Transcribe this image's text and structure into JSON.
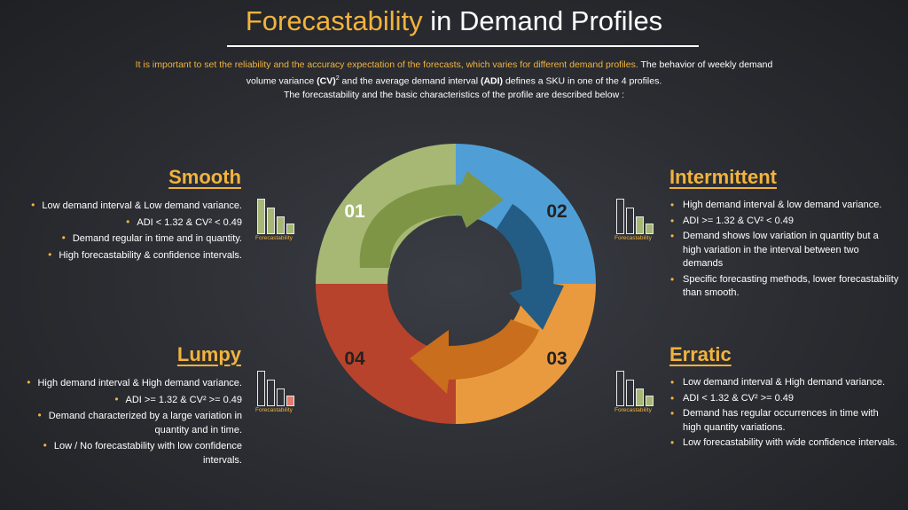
{
  "title": {
    "accent": "Forecastability",
    "rest": " in Demand Profiles"
  },
  "intro": {
    "highlight": "It is important to set the reliability and the accuracy expectation of the forecasts, which varies for different demand profiles.",
    "p1a": " The behavior of weekly demand volume variance ",
    "cv": "(CV)",
    "sup": "2",
    "p1b": " and the average demand interval ",
    "adi": "(ADI)",
    "p1c": " defines a SKU in one of the 4 profiles.",
    "p2": "The forecastability and the basic characteristics of the profile are described below :"
  },
  "quadrants": {
    "smooth": {
      "title": "Smooth",
      "number": "01",
      "items": [
        "Low demand interval & Low demand variance.",
        "ADI < 1.32 & CV² < 0.49",
        "Demand regular in time and in quantity.",
        "High forecastability & confidence intervals."
      ]
    },
    "intermittent": {
      "title": "Intermittent",
      "number": "02",
      "items": [
        "High demand interval & low demand variance.",
        "ADI >= 1.32 & CV² < 0.49",
        "Demand shows low variation in quantity but a high variation in the interval between two demands",
        "Specific forecasting methods, lower forecastability than smooth."
      ]
    },
    "erratic": {
      "title": "Erratic",
      "number": "03",
      "items": [
        "Low demand interval & High demand variance.",
        "ADI < 1.32 & CV² >= 0.49",
        "Demand has regular occurrences in time with high quantity variations.",
        "Low forecastability with wide confidence intervals."
      ]
    },
    "lumpy": {
      "title": "Lumpy",
      "number": "04",
      "items": [
        "High demand interval & High demand variance.",
        "ADI >= 1.32 & CV² >= 0.49",
        "Demand characterized by a large variation in quantity and in time.",
        "Low / No forecastability with low confidence intervals."
      ]
    }
  },
  "forecastability_label": "Forecastability",
  "forecastability_levels": {
    "smooth": 4,
    "intermittent": 2,
    "erratic": 2,
    "lumpy": 1
  },
  "colors": {
    "background": "#2a2c31",
    "accent": "#f2b33d",
    "smooth": "#a6b874",
    "intermittent": "#4f9fd6",
    "erratic": "#ea9a3e",
    "lumpy": "#b8432c",
    "smooth_arrow": "#7e9546",
    "intermittent_arrow": "#235c84",
    "erratic_arrow": "#c86e1c",
    "lumpy_bar": "#e57a6f"
  }
}
